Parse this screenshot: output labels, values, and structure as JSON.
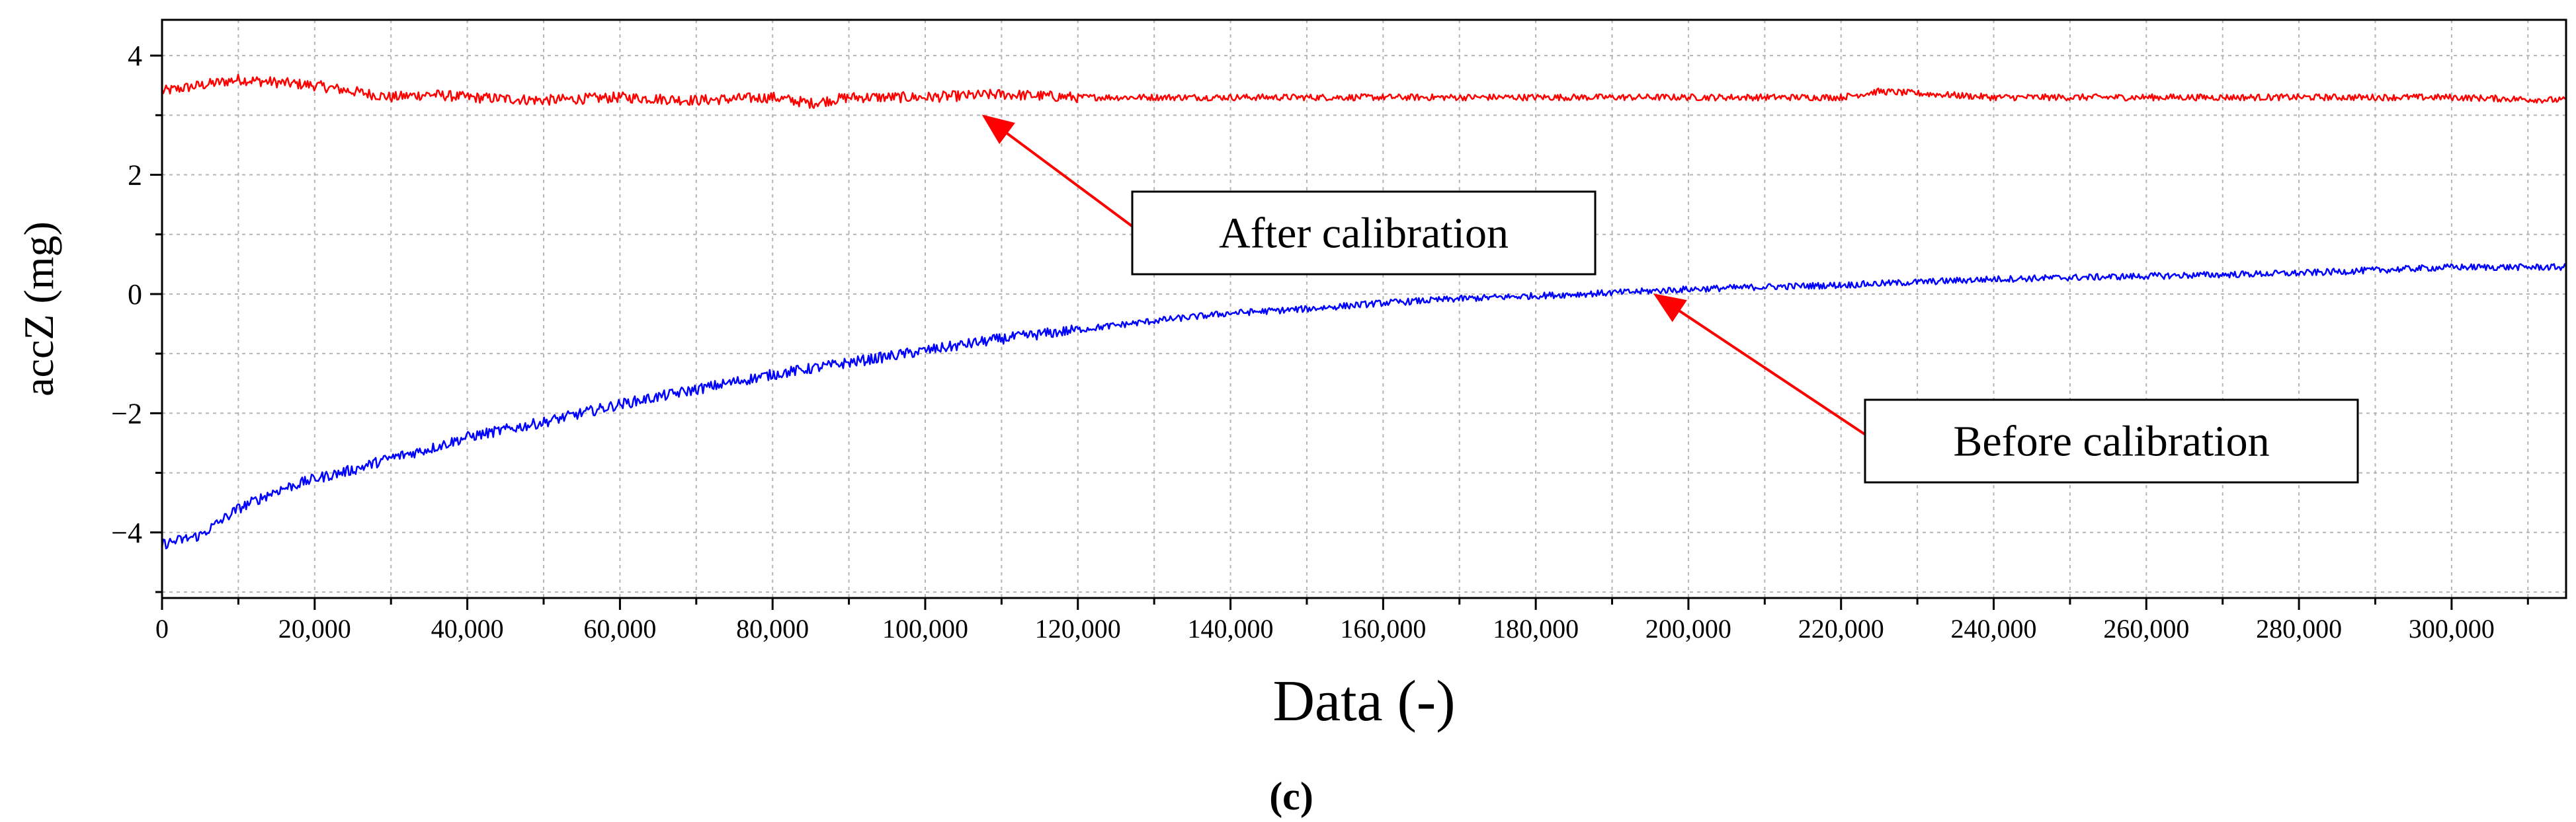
{
  "chart_data": {
    "type": "line",
    "title": "",
    "xlabel": "Data (-)",
    "ylabel": "accZ (mg)",
    "xlim": [
      0,
      315000
    ],
    "ylim": [
      -5.1,
      4.6
    ],
    "x_ticks": [
      0,
      20000,
      40000,
      60000,
      80000,
      100000,
      120000,
      140000,
      160000,
      180000,
      200000,
      220000,
      240000,
      260000,
      280000,
      300000
    ],
    "x_tick_labels": [
      "0",
      "20,000",
      "40,000",
      "60,000",
      "80,000",
      "100,000",
      "120,000",
      "140,000",
      "160,000",
      "180,000",
      "200,000",
      "220,000",
      "240,000",
      "260,000",
      "280,000",
      "300,000"
    ],
    "y_ticks": [
      -4,
      -2,
      0,
      2,
      4
    ],
    "y_tick_labels": [
      "−4",
      "−2",
      "0",
      "2",
      "4"
    ],
    "grid": true,
    "series": [
      {
        "name": "After calibration",
        "color": "#ff0000",
        "x": [
          0,
          5000,
          10000,
          15000,
          20000,
          25000,
          30000,
          35000,
          40000,
          50000,
          60000,
          70000,
          80000,
          85000,
          90000,
          100000,
          110000,
          120000,
          130000,
          140000,
          160000,
          180000,
          200000,
          220000,
          225000,
          240000,
          260000,
          280000,
          300000,
          315000
        ],
        "y": [
          3.4,
          3.5,
          3.6,
          3.55,
          3.5,
          3.4,
          3.3,
          3.35,
          3.3,
          3.25,
          3.3,
          3.25,
          3.3,
          3.2,
          3.3,
          3.3,
          3.35,
          3.3,
          3.3,
          3.3,
          3.3,
          3.3,
          3.3,
          3.3,
          3.4,
          3.3,
          3.3,
          3.3,
          3.3,
          3.25
        ]
      },
      {
        "name": "Before calibration",
        "color": "#0000ff",
        "x": [
          0,
          5000,
          10000,
          15000,
          20000,
          25000,
          30000,
          35000,
          40000,
          50000,
          60000,
          70000,
          80000,
          90000,
          100000,
          110000,
          120000,
          130000,
          140000,
          150000,
          160000,
          170000,
          180000,
          190000,
          200000,
          210000,
          220000,
          230000,
          240000,
          260000,
          280000,
          300000,
          315000
        ],
        "y": [
          -4.2,
          -4.05,
          -3.6,
          -3.3,
          -3.1,
          -2.95,
          -2.75,
          -2.6,
          -2.4,
          -2.15,
          -1.85,
          -1.6,
          -1.35,
          -1.15,
          -0.95,
          -0.75,
          -0.6,
          -0.45,
          -0.32,
          -0.25,
          -0.15,
          -0.08,
          -0.03,
          0.02,
          0.08,
          0.12,
          0.15,
          0.2,
          0.25,
          0.3,
          0.35,
          0.45,
          0.45
        ]
      }
    ],
    "annotations": [
      {
        "text": "After calibration",
        "target_x": 107000,
        "target_y": 3.05,
        "series": "After calibration"
      },
      {
        "text": "Before calibration",
        "target_x": 195000,
        "target_y": 0.05,
        "series": "Before calibration"
      }
    ],
    "panel_label": "(c)"
  }
}
